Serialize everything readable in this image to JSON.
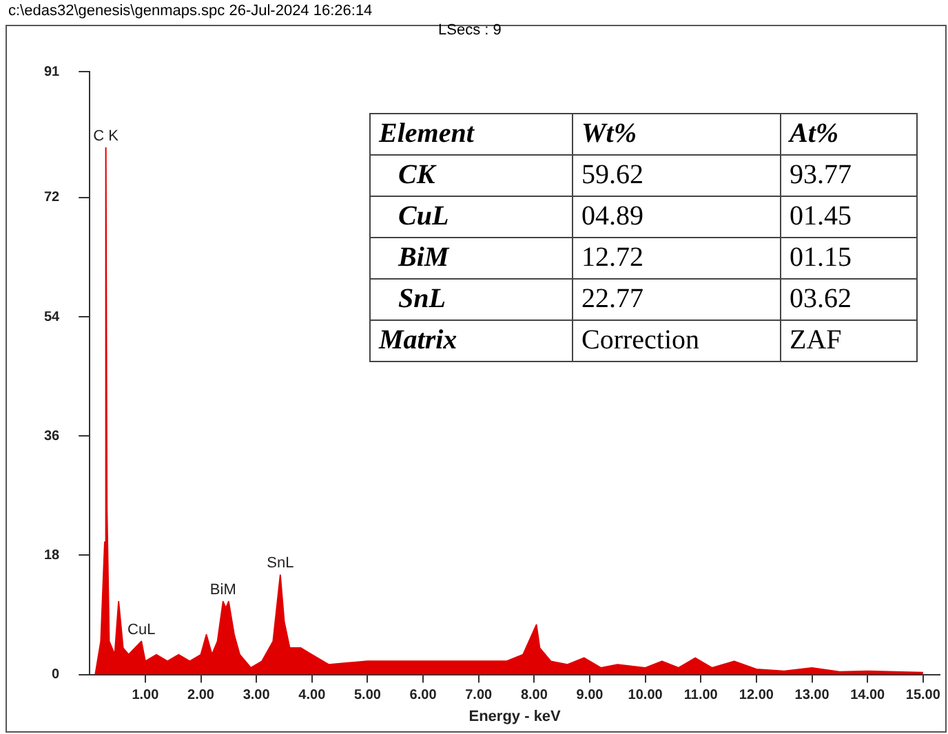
{
  "chart_data": {
    "type": "area",
    "xlabel": "Energy - keV",
    "color": "#e00000",
    "x": [
      0.1,
      0.2,
      0.27,
      0.29,
      0.31,
      0.35,
      0.45,
      0.52,
      0.6,
      0.7,
      0.93,
      1.0,
      1.2,
      1.4,
      1.6,
      1.8,
      2.0,
      2.1,
      2.2,
      2.3,
      2.4,
      2.45,
      2.5,
      2.6,
      2.7,
      2.9,
      3.1,
      3.3,
      3.43,
      3.5,
      3.6,
      3.8,
      4.0,
      4.3,
      5.0,
      5.5,
      6.0,
      6.5,
      7.0,
      7.5,
      7.8,
      8.04,
      8.1,
      8.3,
      8.6,
      8.9,
      9.2,
      9.5,
      10.0,
      10.3,
      10.6,
      10.9,
      11.2,
      11.6,
      12.0,
      12.5,
      13.0,
      13.5,
      14.0,
      14.5,
      15.0
    ],
    "values": [
      0,
      5,
      20,
      79.5,
      25,
      5,
      3,
      11,
      4,
      3,
      5,
      2,
      3,
      2,
      3,
      2,
      3,
      6,
      3,
      5,
      11,
      10,
      11,
      6,
      3,
      1,
      2,
      5,
      15,
      8,
      4,
      4,
      3,
      1.5,
      2,
      2,
      2,
      2,
      2,
      2,
      3,
      7.5,
      4,
      2,
      1.5,
      2.5,
      1,
      1.5,
      1,
      2,
      1,
      2.5,
      1,
      2,
      0.8,
      0.5,
      1,
      0.4,
      0.5,
      0.4,
      0.3
    ],
    "xlim": [
      0,
      15.3
    ],
    "xticks": [
      {
        "value": 1,
        "label": "1.00"
      },
      {
        "value": 2,
        "label": "2.00"
      },
      {
        "value": 3,
        "label": "3.00"
      },
      {
        "value": 4,
        "label": "4.00"
      },
      {
        "value": 5,
        "label": "5.00"
      },
      {
        "value": 6,
        "label": "6.00"
      },
      {
        "value": 7,
        "label": "7.00"
      },
      {
        "value": 8,
        "label": "8.00"
      },
      {
        "value": 9,
        "label": "9.00"
      },
      {
        "value": 10,
        "label": "10.00"
      },
      {
        "value": 11,
        "label": "11.00"
      },
      {
        "value": 12,
        "label": "12.00"
      },
      {
        "value": 13,
        "label": "13.00"
      },
      {
        "value": 14,
        "label": "14.00"
      },
      {
        "value": 15,
        "label": "15.00"
      }
    ],
    "ylim": [
      0,
      91
    ],
    "yticks": [
      0,
      18,
      36,
      54,
      72,
      91
    ],
    "grid": false,
    "legend": false,
    "marker": "none",
    "annotations": [
      {
        "text": "C K",
        "x": 0.29,
        "y": 79.5
      },
      {
        "text": "CuL",
        "x": 0.93,
        "y": 5
      },
      {
        "text": "BiM",
        "x": 2.4,
        "y": 11
      },
      {
        "text": "SnL",
        "x": 3.43,
        "y": 15
      },
      "c:\\edas32\\genesis\\genmaps.spc  26-Jul-2024 16:26:14",
      "LSecs :  9",
      "Element",
      "Wt%",
      "At%",
      "CK",
      "59.62",
      "93.77",
      "CuL",
      "04.89",
      "01.45",
      "BiM",
      "12.72",
      "01.15",
      "SnL",
      "22.77",
      "03.62",
      "Matrix",
      "Correction",
      "ZAF"
    ]
  }
}
